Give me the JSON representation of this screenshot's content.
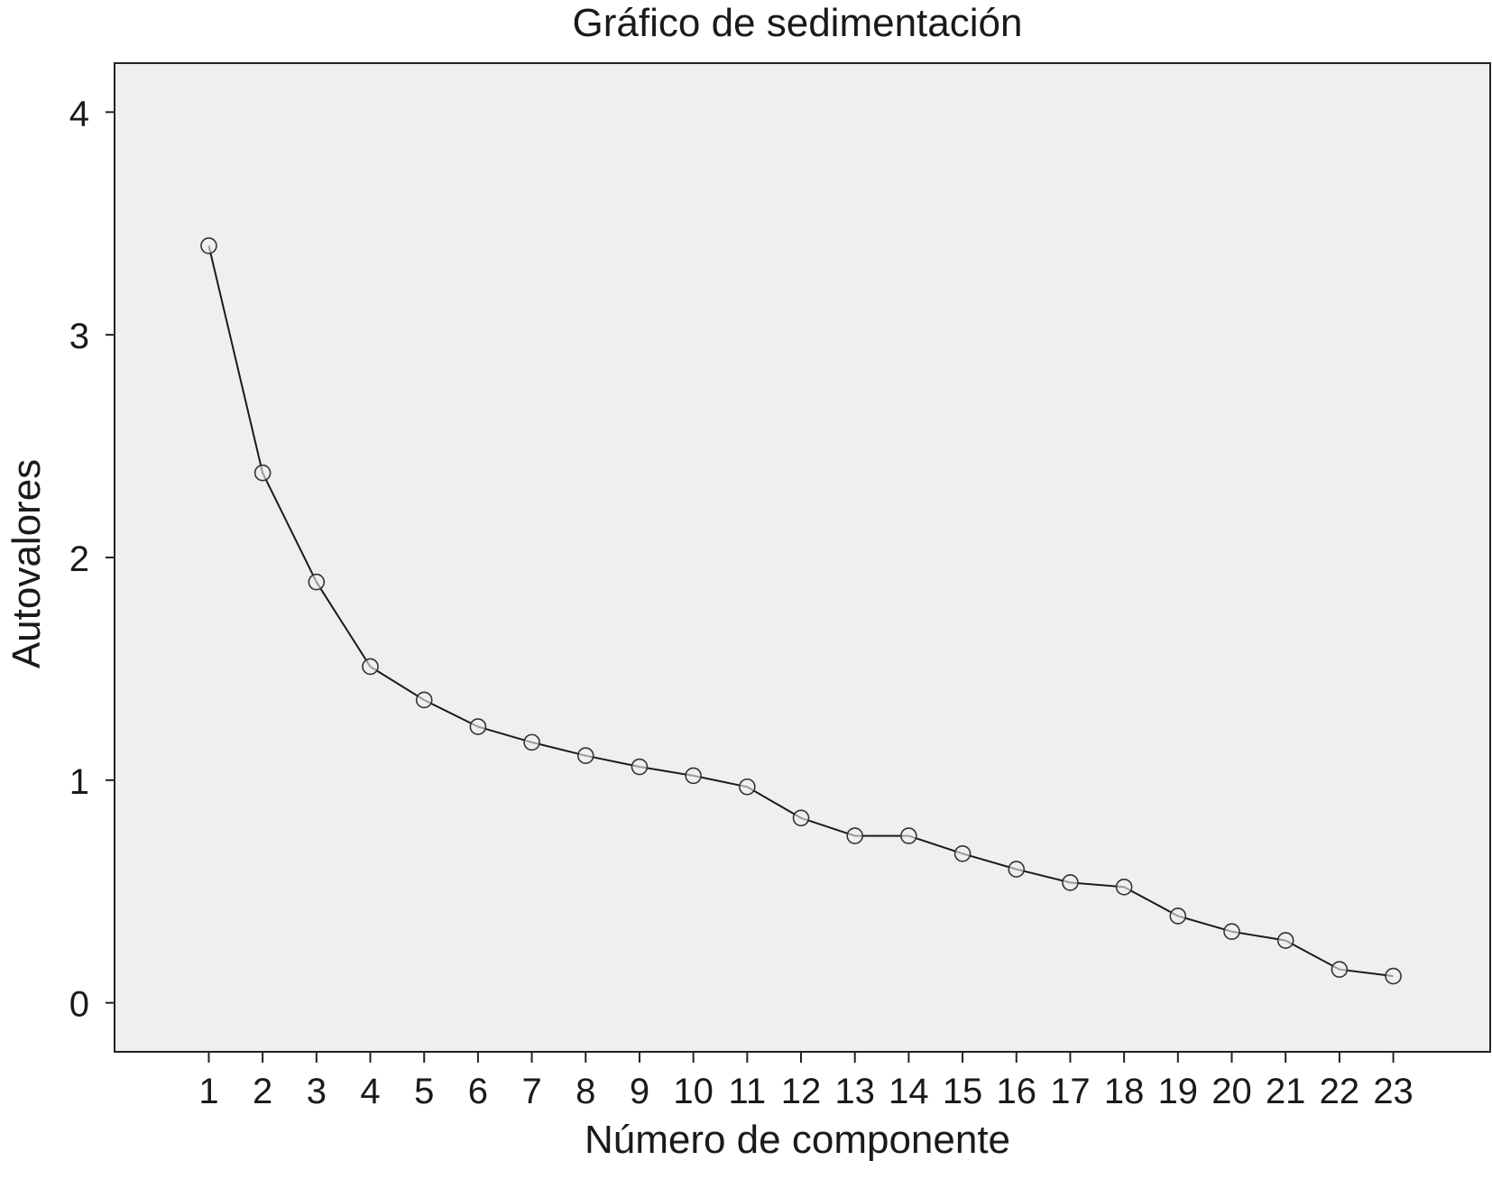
{
  "chart_data": {
    "type": "line",
    "title": "Gráfico de sedimentación",
    "xlabel": "Número de componente",
    "ylabel": "Autovalores",
    "x": [
      1,
      2,
      3,
      4,
      5,
      6,
      7,
      8,
      9,
      10,
      11,
      12,
      13,
      14,
      15,
      16,
      17,
      18,
      19,
      20,
      21,
      22,
      23
    ],
    "xtick_labels": [
      "1",
      "2",
      "3",
      "4",
      "5",
      "6",
      "7",
      "8",
      "9",
      "10",
      "11",
      "12",
      "13",
      "14",
      "15",
      "16",
      "17",
      "18",
      "19",
      "20",
      "21",
      "22",
      "23"
    ],
    "yticks": [
      0,
      1,
      2,
      3,
      4
    ],
    "ytick_labels": [
      "0",
      "1",
      "2",
      "3",
      "4"
    ],
    "xlim": [
      -0.75,
      24.8
    ],
    "ylim": [
      -0.22,
      4.22
    ],
    "series": [
      {
        "values": [
          3.4,
          2.38,
          1.89,
          1.51,
          1.36,
          1.24,
          1.17,
          1.11,
          1.06,
          1.02,
          0.97,
          0.83,
          0.75,
          0.75,
          0.67,
          0.6,
          0.54,
          0.52,
          0.39,
          0.32,
          0.28,
          0.15,
          0.12
        ],
        "marker": "circle-open",
        "line_color": "#1a1a1a"
      }
    ],
    "grid": false,
    "plot_background": "#efefef",
    "legend": "none"
  }
}
